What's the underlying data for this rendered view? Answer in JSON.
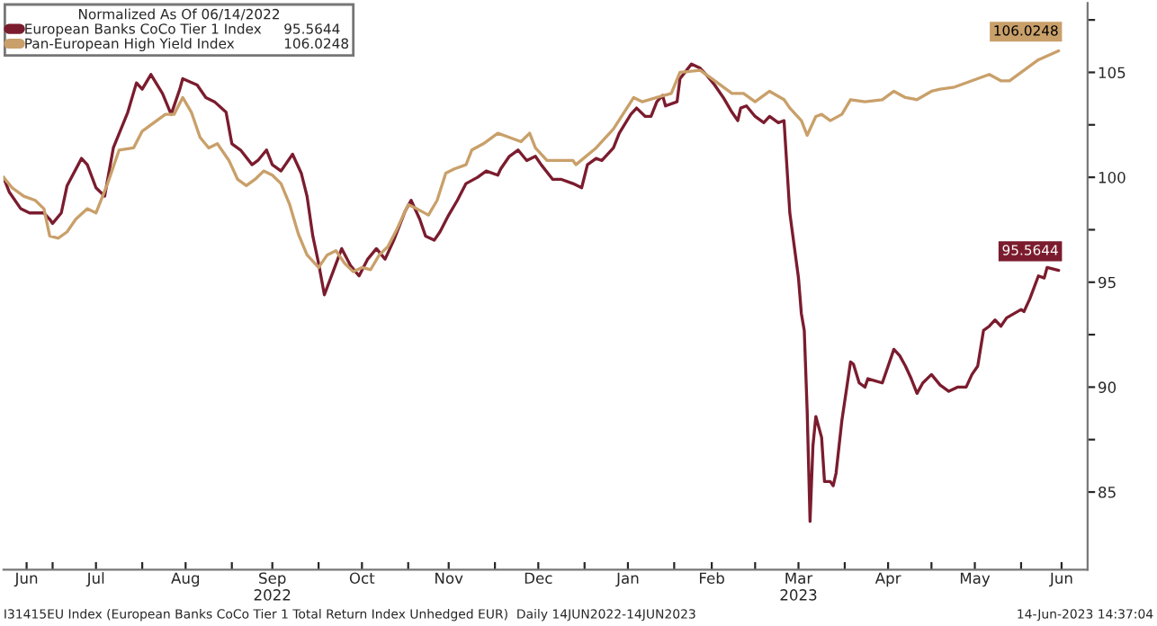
{
  "chart_data": {
    "type": "line",
    "legend_title": "Normalized As Of 06/14/2022",
    "legend": "top left",
    "grid": false,
    "line_style": "solid",
    "annotations": [
      "I31415EU Index (European Banks CoCo Tier 1 Total Return Index Unhedged EUR)  Daily 14JUN2022-14JUN2023",
      "14-Jun-2023 14:37:04"
    ],
    "xlim": [
      "2022-06-14",
      "2023-06-24"
    ],
    "xticks": [
      {
        "value": "2022-06-22",
        "label": "Jun"
      },
      {
        "value": "2022-07-01",
        "label": null
      },
      {
        "value": "2022-07-16",
        "label": "Jul"
      },
      {
        "value": "2022-08-01",
        "label": null
      },
      {
        "value": "2022-08-16",
        "label": "Aug"
      },
      {
        "value": "2022-09-01",
        "label": null
      },
      {
        "value": "2022-09-15",
        "label": "Sep\n2022"
      },
      {
        "value": "2022-10-01",
        "label": null
      },
      {
        "value": "2022-10-16",
        "label": "Oct"
      },
      {
        "value": "2022-11-01",
        "label": null
      },
      {
        "value": "2022-11-15",
        "label": "Nov"
      },
      {
        "value": "2022-12-01",
        "label": null
      },
      {
        "value": "2022-12-16",
        "label": "Dec"
      },
      {
        "value": "2023-01-01",
        "label": null
      },
      {
        "value": "2023-01-16",
        "label": "Jan"
      },
      {
        "value": "2023-02-01",
        "label": null
      },
      {
        "value": "2023-02-14",
        "label": "Feb"
      },
      {
        "value": "2023-03-01",
        "label": null
      },
      {
        "value": "2023-03-16",
        "label": "Mar\n2023"
      },
      {
        "value": "2023-04-01",
        "label": null
      },
      {
        "value": "2023-04-16",
        "label": "Apr"
      },
      {
        "value": "2023-05-01",
        "label": null
      },
      {
        "value": "2023-05-16",
        "label": "May"
      },
      {
        "value": "2023-06-01",
        "label": null
      },
      {
        "value": "2023-06-15",
        "label": "Jun"
      }
    ],
    "ylim": [
      81.3,
      108.3
    ],
    "yticks": [
      85,
      {
        "value": 87.5,
        "label": null
      },
      90,
      {
        "value": 92.5,
        "label": null
      },
      95,
      {
        "value": 97.5,
        "label": null
      },
      100,
      {
        "value": 102.5,
        "label": null
      },
      105,
      {
        "value": 107.5,
        "label": null
      }
    ],
    "series": [
      {
        "name": "European Banks CoCo Tier 1 Index",
        "color": "#7b1c2e",
        "x": [
          "2022-06-14",
          "2022-06-16",
          "2022-06-20",
          "2022-06-23",
          "2022-06-28",
          "2022-06-30",
          "2022-07-01",
          "2022-07-04",
          "2022-07-06",
          "2022-07-11",
          "2022-07-13",
          "2022-07-16",
          "2022-07-19",
          "2022-07-22",
          "2022-07-27",
          "2022-07-30",
          "2022-08-01",
          "2022-08-04",
          "2022-08-08",
          "2022-08-11",
          "2022-08-14",
          "2022-08-15",
          "2022-08-20",
          "2022-08-23",
          "2022-08-26",
          "2022-08-30",
          "2022-09-01",
          "2022-09-04",
          "2022-09-08",
          "2022-09-10",
          "2022-09-13",
          "2022-09-15",
          "2022-09-18",
          "2022-09-22",
          "2022-09-25",
          "2022-09-27",
          "2022-09-29",
          "2022-10-01",
          "2022-10-03",
          "2022-10-06",
          "2022-10-09",
          "2022-10-12",
          "2022-10-15",
          "2022-10-18",
          "2022-10-21",
          "2022-10-24",
          "2022-10-27",
          "2022-10-31",
          "2022-11-02",
          "2022-11-05",
          "2022-11-07",
          "2022-11-10",
          "2022-11-12",
          "2022-11-15",
          "2022-11-18",
          "2022-11-21",
          "2022-11-25",
          "2022-11-28",
          "2022-12-02",
          "2022-12-03",
          "2022-12-06",
          "2022-12-09",
          "2022-12-12",
          "2022-12-15",
          "2022-12-17",
          "2022-12-21",
          "2022-12-24",
          "2022-12-28",
          "2022-12-31",
          "2023-01-02",
          "2023-01-05",
          "2023-01-07",
          "2023-01-11",
          "2023-01-13",
          "2023-01-17",
          "2023-01-19",
          "2023-01-22",
          "2023-01-24",
          "2023-01-26",
          "2023-01-28",
          "2023-01-29",
          "2023-02-02",
          "2023-02-03",
          "2023-02-07",
          "2023-02-10",
          "2023-02-12",
          "2023-02-15",
          "2023-02-18",
          "2023-02-21",
          "2023-02-23",
          "2023-02-24",
          "2023-02-26",
          "2023-03-01",
          "2023-03-04",
          "2023-03-06",
          "2023-03-09",
          "2023-03-11",
          "2023-03-13",
          "2023-03-16",
          "2023-03-17",
          "2023-03-18",
          "2023-03-19",
          "2023-03-20",
          "2023-03-21",
          "2023-03-22",
          "2023-03-24",
          "2023-03-25",
          "2023-03-27",
          "2023-03-28",
          "2023-03-29",
          "2023-03-31",
          "2023-04-03",
          "2023-04-04",
          "2023-04-06",
          "2023-04-08",
          "2023-04-09",
          "2023-04-14",
          "2023-04-18",
          "2023-04-20",
          "2023-04-22",
          "2023-04-24",
          "2023-04-26",
          "2023-04-28",
          "2023-05-01",
          "2023-05-04",
          "2023-05-07",
          "2023-05-10",
          "2023-05-13",
          "2023-05-15",
          "2023-05-17",
          "2023-05-19",
          "2023-05-21",
          "2023-05-23",
          "2023-05-25",
          "2023-05-27",
          "2023-06-01",
          "2023-06-02",
          "2023-06-04",
          "2023-06-07",
          "2023-06-09",
          "2023-06-10",
          "2023-06-14"
        ],
        "values": [
          100,
          99.3,
          98.5,
          98.3,
          98.3,
          98.0,
          97.8,
          98.3,
          99.6,
          100.9,
          100.6,
          99.5,
          99.1,
          101.4,
          103.1,
          104.5,
          104.2,
          104.9,
          104.0,
          103.0,
          104.2,
          104.7,
          104.4,
          103.8,
          103.6,
          103.1,
          101.6,
          101.3,
          100.6,
          100.8,
          101.3,
          100.6,
          100.3,
          101.1,
          100.2,
          99.1,
          97.2,
          95.9,
          94.4,
          95.5,
          96.6,
          95.8,
          95.3,
          96.1,
          96.6,
          96.1,
          97.0,
          98.4,
          98.9,
          98.0,
          97.2,
          97.0,
          97.4,
          98.2,
          98.9,
          99.7,
          100.0,
          100.3,
          100.1,
          100.4,
          101.0,
          101.3,
          100.8,
          101.0,
          100.6,
          99.9,
          99.9,
          99.7,
          99.5,
          100.6,
          100.9,
          100.8,
          101.4,
          102.1,
          103.0,
          103.3,
          102.9,
          102.9,
          103.6,
          103.9,
          103.4,
          103.6,
          104.7,
          105.4,
          105.2,
          104.9,
          104.4,
          103.8,
          103.1,
          102.7,
          103.3,
          103.4,
          102.9,
          102.6,
          102.9,
          102.6,
          102.7,
          98.3,
          95.2,
          93.5,
          92.7,
          88.9,
          83.6,
          87.2,
          88.6,
          87.6,
          85.5,
          85.5,
          85.3,
          85.9,
          88.4,
          91.2,
          91.1,
          90.2,
          90.0,
          90.4,
          90.2,
          91.8,
          91.5,
          91.0,
          90.4,
          89.7,
          90.2,
          90.6,
          90.1,
          89.8,
          90.0,
          90.0,
          90.6,
          91.0,
          92.7,
          92.9,
          93.2,
          92.9,
          93.3,
          93.7,
          93.6,
          94.2,
          95.3,
          95.2,
          95.7,
          95.5644
        ],
        "value_labels": [
          null,
          null,
          null,
          null,
          null,
          null,
          null,
          null,
          null,
          null,
          null,
          null,
          null,
          null,
          null,
          null,
          null,
          null,
          null,
          null,
          null,
          null,
          null,
          null,
          null,
          null,
          null,
          null,
          null,
          null,
          null,
          null,
          null,
          null,
          null,
          null,
          null,
          null,
          null,
          null,
          null,
          null,
          null,
          null,
          null,
          null,
          null,
          null,
          null,
          null,
          null,
          null,
          null,
          null,
          null,
          null,
          null,
          null,
          null,
          null,
          null,
          null,
          null,
          null,
          null,
          null,
          null,
          null,
          null,
          null,
          null,
          null,
          null,
          null,
          null,
          null,
          null,
          null,
          null,
          null,
          null,
          null,
          null,
          null,
          null,
          null,
          null,
          null,
          null,
          null,
          null,
          null,
          null,
          null,
          null,
          null,
          null,
          null,
          null,
          null,
          null,
          null,
          null,
          null,
          null,
          null,
          null,
          null,
          null,
          null,
          null,
          null,
          null,
          null,
          null,
          null,
          null,
          null,
          null,
          null,
          null,
          null,
          null,
          null,
          null,
          null,
          null,
          null,
          null,
          null,
          null,
          null,
          null,
          null,
          null,
          null,
          null,
          null,
          null,
          null,
          null,
          "95.5644"
        ]
      },
      {
        "name": "Pan-European High Yield Index",
        "color": "#c9a06a",
        "x": [
          "2022-06-14",
          "2022-06-17",
          "2022-06-21",
          "2022-06-25",
          "2022-06-28",
          "2022-06-30",
          "2022-07-03",
          "2022-07-06",
          "2022-07-09",
          "2022-07-13",
          "2022-07-16",
          "2022-07-20",
          "2022-07-24",
          "2022-07-29",
          "2022-08-01",
          "2022-08-06",
          "2022-08-09",
          "2022-08-12",
          "2022-08-15",
          "2022-08-18",
          "2022-08-21",
          "2022-08-24",
          "2022-08-27",
          "2022-08-31",
          "2022-09-03",
          "2022-09-06",
          "2022-09-09",
          "2022-09-12",
          "2022-09-15",
          "2022-09-18",
          "2022-09-21",
          "2022-09-24",
          "2022-09-27",
          "2022-10-01",
          "2022-10-04",
          "2022-10-07",
          "2022-10-10",
          "2022-10-13",
          "2022-10-16",
          "2022-10-19",
          "2022-10-22",
          "2022-10-25",
          "2022-10-28",
          "2022-11-01",
          "2022-11-04",
          "2022-11-08",
          "2022-11-11",
          "2022-11-14",
          "2022-11-17",
          "2022-11-21",
          "2022-11-23",
          "2022-11-27",
          "2022-12-02",
          "2022-12-06",
          "2022-12-10",
          "2022-12-13",
          "2022-12-15",
          "2022-12-19",
          "2022-12-28",
          "2022-12-29",
          "2023-01-05",
          "2023-01-11",
          "2023-01-18",
          "2023-01-21",
          "2023-01-26",
          "2023-01-31",
          "2023-02-03",
          "2023-02-10",
          "2023-02-14",
          "2023-02-21",
          "2023-02-25",
          "2023-03-01",
          "2023-03-06",
          "2023-03-11",
          "2023-03-13",
          "2023-03-17",
          "2023-03-19",
          "2023-03-22",
          "2023-03-24",
          "2023-03-27",
          "2023-03-31",
          "2023-04-03",
          "2023-04-08",
          "2023-04-14",
          "2023-04-18",
          "2023-04-22",
          "2023-04-26",
          "2023-05-01",
          "2023-05-04",
          "2023-05-09",
          "2023-05-15",
          "2023-05-21",
          "2023-05-25",
          "2023-05-28",
          "2023-06-02",
          "2023-06-07",
          "2023-06-14"
        ],
        "values": [
          100,
          99.5,
          99.1,
          98.9,
          98.5,
          97.2,
          97.1,
          97.4,
          98.0,
          98.5,
          98.3,
          99.7,
          101.3,
          101.4,
          102.2,
          102.7,
          103.0,
          103.0,
          103.8,
          103.1,
          101.9,
          101.4,
          101.6,
          100.8,
          99.9,
          99.6,
          99.9,
          100.3,
          100.1,
          99.7,
          98.7,
          97.3,
          96.3,
          95.7,
          96.3,
          96.5,
          95.9,
          95.5,
          95.7,
          95.6,
          96.3,
          96.7,
          97.5,
          98.7,
          98.5,
          98.2,
          98.9,
          100.2,
          100.4,
          100.6,
          101.3,
          101.6,
          102.1,
          101.9,
          101.7,
          102.1,
          101.4,
          100.8,
          100.8,
          100.6,
          101.4,
          102.3,
          103.8,
          103.6,
          103.8,
          104.0,
          105.0,
          105.1,
          104.7,
          104.0,
          104.0,
          103.6,
          104.1,
          103.7,
          103.3,
          102.7,
          102.0,
          102.9,
          103.0,
          102.7,
          103.0,
          103.7,
          103.6,
          103.7,
          104.1,
          103.8,
          103.7,
          104.1,
          104.2,
          104.3,
          104.6,
          104.9,
          104.6,
          104.6,
          105.1,
          105.6,
          106.0248
        ],
        "value_labels": [
          null,
          null,
          null,
          null,
          null,
          null,
          null,
          null,
          null,
          null,
          null,
          null,
          null,
          null,
          null,
          null,
          null,
          null,
          null,
          null,
          null,
          null,
          null,
          null,
          null,
          null,
          null,
          null,
          null,
          null,
          null,
          null,
          null,
          null,
          null,
          null,
          null,
          null,
          null,
          null,
          null,
          null,
          null,
          null,
          null,
          null,
          null,
          null,
          null,
          null,
          null,
          null,
          null,
          null,
          null,
          null,
          null,
          null,
          null,
          null,
          null,
          null,
          null,
          null,
          null,
          null,
          null,
          null,
          null,
          null,
          null,
          null,
          null,
          null,
          null,
          null,
          null,
          null,
          null,
          null,
          null,
          null,
          null,
          null,
          null,
          null,
          null,
          null,
          null,
          null,
          null,
          null,
          null,
          null,
          null,
          null,
          "106.0248"
        ]
      }
    ]
  }
}
